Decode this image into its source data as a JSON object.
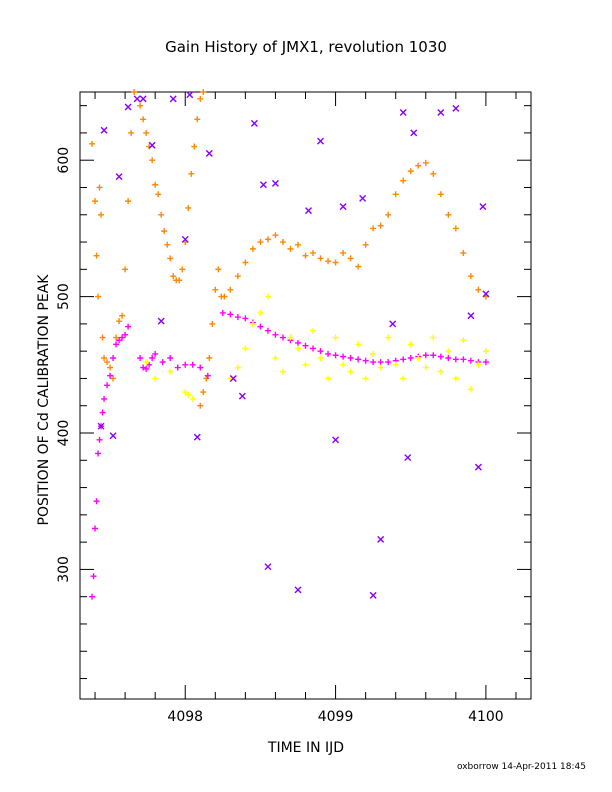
{
  "chart_data": {
    "type": "scatter",
    "title": "Gain History of JMX1, revolution 1030",
    "xlabel": "TIME IN IJD",
    "ylabel": "POSITION OF Cd CALIBRATION PEAK",
    "footer": "oxborrow 14-Apr-2011 18:45",
    "xlim": [
      4097.3,
      4100.3
    ],
    "ylim": [
      205,
      650
    ],
    "xticks": [
      4098,
      4099,
      4100
    ],
    "yticks": [
      300,
      400,
      500,
      600
    ],
    "grid": false,
    "series": [
      {
        "color": "#ff8800",
        "marker": "plus",
        "points": [
          [
            4097.38,
            612
          ],
          [
            4097.4,
            570
          ],
          [
            4097.41,
            530
          ],
          [
            4097.42,
            500
          ],
          [
            4097.43,
            580
          ],
          [
            4097.44,
            560
          ],
          [
            4097.45,
            470
          ],
          [
            4097.46,
            455
          ],
          [
            4097.48,
            452
          ],
          [
            4097.5,
            448
          ],
          [
            4097.52,
            440
          ],
          [
            4097.54,
            470
          ],
          [
            4097.56,
            482
          ],
          [
            4097.58,
            486
          ],
          [
            4097.6,
            520
          ],
          [
            4097.62,
            570
          ],
          [
            4097.64,
            620
          ],
          [
            4097.66,
            650
          ],
          [
            4097.7,
            640
          ],
          [
            4097.72,
            630
          ],
          [
            4097.74,
            620
          ],
          [
            4097.76,
            610
          ],
          [
            4097.78,
            600
          ],
          [
            4097.8,
            582
          ],
          [
            4097.82,
            575
          ],
          [
            4097.84,
            560
          ],
          [
            4097.86,
            548
          ],
          [
            4097.88,
            538
          ],
          [
            4097.9,
            528
          ],
          [
            4097.92,
            515
          ],
          [
            4097.94,
            512
          ],
          [
            4097.96,
            512
          ],
          [
            4097.98,
            520
          ],
          [
            4098.0,
            540
          ],
          [
            4098.02,
            565
          ],
          [
            4098.04,
            590
          ],
          [
            4098.06,
            610
          ],
          [
            4098.08,
            630
          ],
          [
            4098.1,
            645
          ],
          [
            4098.12,
            650
          ],
          [
            4098.1,
            420
          ],
          [
            4098.12,
            430
          ],
          [
            4098.14,
            440
          ],
          [
            4098.16,
            455
          ],
          [
            4098.18,
            480
          ],
          [
            4098.2,
            505
          ],
          [
            4098.22,
            520
          ],
          [
            4098.24,
            500
          ],
          [
            4098.26,
            500
          ],
          [
            4098.3,
            505
          ],
          [
            4098.35,
            515
          ],
          [
            4098.4,
            525
          ],
          [
            4098.45,
            535
          ],
          [
            4098.5,
            540
          ],
          [
            4098.55,
            542
          ],
          [
            4098.6,
            545
          ],
          [
            4098.65,
            540
          ],
          [
            4098.7,
            535
          ],
          [
            4098.75,
            538
          ],
          [
            4098.8,
            530
          ],
          [
            4098.85,
            532
          ],
          [
            4098.9,
            528
          ],
          [
            4098.95,
            526
          ],
          [
            4099.0,
            525
          ],
          [
            4099.05,
            532
          ],
          [
            4099.1,
            528
          ],
          [
            4099.15,
            522
          ],
          [
            4099.2,
            538
          ],
          [
            4099.25,
            550
          ],
          [
            4099.3,
            552
          ],
          [
            4099.35,
            560
          ],
          [
            4099.4,
            575
          ],
          [
            4099.45,
            585
          ],
          [
            4099.5,
            592
          ],
          [
            4099.55,
            596
          ],
          [
            4099.6,
            598
          ],
          [
            4099.65,
            590
          ],
          [
            4099.7,
            575
          ],
          [
            4099.75,
            560
          ],
          [
            4099.8,
            550
          ],
          [
            4099.85,
            532
          ],
          [
            4099.9,
            515
          ],
          [
            4099.95,
            505
          ],
          [
            4100.0,
            500
          ]
        ]
      },
      {
        "color": "#ff00ff",
        "marker": "plus",
        "points": [
          [
            4097.38,
            280
          ],
          [
            4097.39,
            295
          ],
          [
            4097.4,
            330
          ],
          [
            4097.41,
            350
          ],
          [
            4097.42,
            385
          ],
          [
            4097.43,
            395
          ],
          [
            4097.44,
            405
          ],
          [
            4097.45,
            415
          ],
          [
            4097.46,
            425
          ],
          [
            4097.48,
            435
          ],
          [
            4097.5,
            442
          ],
          [
            4097.52,
            455
          ],
          [
            4097.54,
            465
          ],
          [
            4097.56,
            468
          ],
          [
            4097.58,
            470
          ],
          [
            4097.6,
            472
          ],
          [
            4097.62,
            478
          ],
          [
            4097.7,
            455
          ],
          [
            4097.72,
            448
          ],
          [
            4097.74,
            447
          ],
          [
            4097.76,
            450
          ],
          [
            4097.78,
            455
          ],
          [
            4097.8,
            458
          ],
          [
            4097.85,
            452
          ],
          [
            4097.9,
            455
          ],
          [
            4097.95,
            448
          ],
          [
            4098.0,
            450
          ],
          [
            4098.05,
            450
          ],
          [
            4098.1,
            448
          ],
          [
            4098.15,
            442
          ],
          [
            4098.25,
            488
          ],
          [
            4098.3,
            487
          ],
          [
            4098.35,
            485
          ],
          [
            4098.4,
            484
          ],
          [
            4098.45,
            481
          ],
          [
            4098.5,
            478
          ],
          [
            4098.55,
            475
          ],
          [
            4098.6,
            472
          ],
          [
            4098.65,
            470
          ],
          [
            4098.7,
            468
          ],
          [
            4098.75,
            466
          ],
          [
            4098.8,
            464
          ],
          [
            4098.85,
            462
          ],
          [
            4098.9,
            460
          ],
          [
            4098.95,
            458
          ],
          [
            4099.0,
            457
          ],
          [
            4099.05,
            456
          ],
          [
            4099.1,
            455
          ],
          [
            4099.15,
            454
          ],
          [
            4099.2,
            453
          ],
          [
            4099.25,
            452
          ],
          [
            4099.3,
            452
          ],
          [
            4099.35,
            452
          ],
          [
            4099.4,
            453
          ],
          [
            4099.45,
            454
          ],
          [
            4099.5,
            455
          ],
          [
            4099.55,
            456
          ],
          [
            4099.6,
            457
          ],
          [
            4099.65,
            457
          ],
          [
            4099.7,
            456
          ],
          [
            4099.75,
            455
          ],
          [
            4099.8,
            454
          ],
          [
            4099.85,
            454
          ],
          [
            4099.9,
            453
          ],
          [
            4099.95,
            452
          ],
          [
            4100.0,
            452
          ]
        ]
      },
      {
        "color": "#ffff00",
        "marker": "plus",
        "points": [
          [
            4097.74,
            452
          ],
          [
            4097.8,
            440
          ],
          [
            4097.9,
            445
          ],
          [
            4098.0,
            430
          ],
          [
            4098.02,
            428
          ],
          [
            4098.05,
            425
          ],
          [
            4098.3,
            440
          ],
          [
            4098.35,
            448
          ],
          [
            4098.4,
            462
          ],
          [
            4098.45,
            480
          ],
          [
            4098.5,
            488
          ],
          [
            4098.55,
            500
          ],
          [
            4098.6,
            455
          ],
          [
            4098.65,
            445
          ],
          [
            4098.7,
            470
          ],
          [
            4098.75,
            462
          ],
          [
            4098.8,
            450
          ],
          [
            4098.85,
            475
          ],
          [
            4098.9,
            455
          ],
          [
            4098.95,
            440
          ],
          [
            4099.0,
            470
          ],
          [
            4099.05,
            450
          ],
          [
            4099.1,
            445
          ],
          [
            4099.15,
            465
          ],
          [
            4099.2,
            440
          ],
          [
            4099.25,
            458
          ],
          [
            4099.3,
            448
          ],
          [
            4099.35,
            470
          ],
          [
            4099.4,
            450
          ],
          [
            4099.45,
            440
          ],
          [
            4099.5,
            465
          ],
          [
            4099.55,
            455
          ],
          [
            4099.6,
            448
          ],
          [
            4099.65,
            470
          ],
          [
            4099.7,
            445
          ],
          [
            4099.75,
            460
          ],
          [
            4099.8,
            440
          ],
          [
            4099.85,
            468
          ],
          [
            4099.9,
            432
          ],
          [
            4099.95,
            450
          ],
          [
            4100.0,
            460
          ]
        ]
      },
      {
        "color": "#8800ff",
        "marker": "x",
        "points": [
          [
            4097.44,
            405
          ],
          [
            4097.46,
            622
          ],
          [
            4097.52,
            398
          ],
          [
            4097.56,
            588
          ],
          [
            4097.62,
            639
          ],
          [
            4097.68,
            645
          ],
          [
            4097.72,
            645
          ],
          [
            4097.78,
            611
          ],
          [
            4097.84,
            482
          ],
          [
            4097.92,
            645
          ],
          [
            4098.0,
            542
          ],
          [
            4098.03,
            648
          ],
          [
            4098.08,
            397
          ],
          [
            4098.16,
            605
          ],
          [
            4098.32,
            440
          ],
          [
            4098.38,
            427
          ],
          [
            4098.46,
            627
          ],
          [
            4098.52,
            582
          ],
          [
            4098.55,
            302
          ],
          [
            4098.6,
            583
          ],
          [
            4098.75,
            285
          ],
          [
            4098.82,
            563
          ],
          [
            4098.9,
            614
          ],
          [
            4099.0,
            395
          ],
          [
            4099.05,
            566
          ],
          [
            4099.18,
            572
          ],
          [
            4099.25,
            281
          ],
          [
            4099.3,
            322
          ],
          [
            4099.38,
            480
          ],
          [
            4099.45,
            635
          ],
          [
            4099.48,
            382
          ],
          [
            4099.52,
            620
          ],
          [
            4099.7,
            635
          ],
          [
            4099.8,
            638
          ],
          [
            4099.9,
            486
          ],
          [
            4099.95,
            375
          ],
          [
            4099.98,
            566
          ],
          [
            4100.0,
            502
          ]
        ]
      }
    ]
  }
}
